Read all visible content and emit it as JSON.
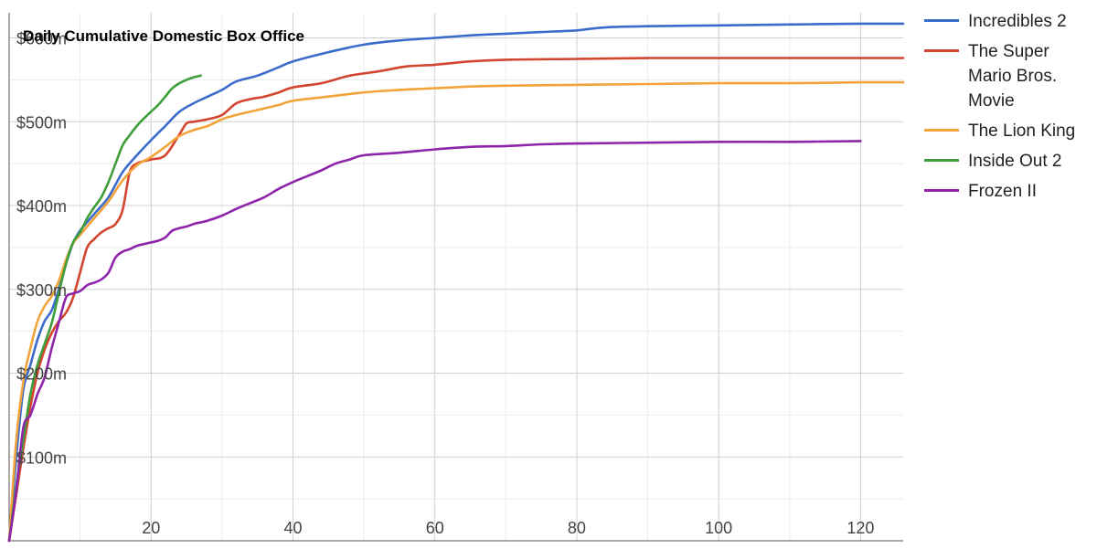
{
  "chart_data": {
    "type": "line",
    "title": "Daily Cumulative Domestic Box Office",
    "xlabel": "",
    "ylabel": "",
    "xlim": [
      0,
      126
    ],
    "ylim": [
      0,
      630
    ],
    "x_ticks": [
      20,
      40,
      60,
      80,
      100,
      120
    ],
    "y_ticks": [
      100,
      200,
      300,
      400,
      500,
      600
    ],
    "y_tick_labels": [
      "$100m",
      "$200m",
      "$300m",
      "$400m",
      "$500m",
      "$600m"
    ],
    "grid": true,
    "legend_position": "right",
    "series": [
      {
        "name": "Incredibles 2",
        "color": "#3c6ccb",
        "x": [
          0,
          1,
          2,
          3,
          4,
          5,
          6,
          7,
          8,
          9,
          10,
          12,
          14,
          16,
          18,
          20,
          22,
          24,
          26,
          28,
          30,
          32,
          35,
          38,
          40,
          45,
          50,
          55,
          60,
          65,
          70,
          75,
          80,
          82,
          85,
          90,
          100,
          110,
          120,
          126
        ],
        "y": [
          0,
          100,
          180,
          210,
          240,
          262,
          275,
          300,
          330,
          355,
          370,
          390,
          410,
          440,
          460,
          478,
          495,
          512,
          522,
          530,
          538,
          548,
          555,
          565,
          572,
          583,
          592,
          597,
          600,
          603,
          605,
          607,
          609,
          611,
          613,
          614,
          615,
          616,
          617,
          617
        ]
      },
      {
        "name": "The Super Mario Bros. Movie",
        "color": "#d3452f",
        "x": [
          0,
          1,
          2,
          3,
          4,
          5,
          6,
          7,
          8,
          9,
          10,
          11,
          12,
          13,
          14,
          15,
          16,
          17,
          18,
          19,
          20,
          22,
          24,
          25,
          26,
          28,
          30,
          32,
          34,
          36,
          38,
          40,
          44,
          48,
          52,
          56,
          60,
          65,
          70,
          80,
          90,
          100,
          110,
          120,
          126
        ],
        "y": [
          0,
          55,
          110,
          160,
          200,
          228,
          248,
          262,
          272,
          290,
          320,
          350,
          360,
          368,
          373,
          378,
          395,
          440,
          450,
          453,
          455,
          460,
          485,
          498,
          500,
          503,
          508,
          522,
          527,
          530,
          535,
          541,
          546,
          555,
          560,
          566,
          568,
          572,
          574,
          575,
          576,
          576,
          576,
          576,
          576
        ]
      },
      {
        "name": "The Lion King",
        "color": "#f2a33a",
        "x": [
          0,
          1,
          2,
          3,
          4,
          5,
          6,
          7,
          8,
          9,
          10,
          12,
          14,
          16,
          18,
          20,
          22,
          24,
          26,
          28,
          30,
          32,
          35,
          38,
          40,
          45,
          50,
          55,
          60,
          65,
          70,
          80,
          90,
          100,
          110,
          120,
          126
        ],
        "y": [
          0,
          120,
          190,
          230,
          262,
          280,
          292,
          310,
          335,
          355,
          365,
          385,
          405,
          430,
          448,
          458,
          470,
          483,
          490,
          495,
          503,
          508,
          514,
          520,
          525,
          530,
          535,
          538,
          540,
          542,
          543,
          544,
          545,
          546,
          546,
          547,
          547
        ]
      },
      {
        "name": "Inside Out 2",
        "color": "#3d9e3a",
        "x": [
          0,
          1,
          2,
          3,
          4,
          5,
          6,
          7,
          8,
          9,
          10,
          11,
          12,
          13,
          14,
          15,
          16,
          17,
          18,
          19,
          20,
          21,
          22,
          23,
          24,
          25,
          26,
          27
        ],
        "y": [
          0,
          65,
          120,
          175,
          210,
          235,
          260,
          295,
          330,
          356,
          368,
          385,
          398,
          410,
          428,
          450,
          472,
          484,
          495,
          504,
          512,
          520,
          530,
          540,
          546,
          550,
          553,
          555
        ]
      },
      {
        "name": "Frozen II",
        "color": "#8e24aa",
        "x": [
          0,
          1,
          2,
          3,
          4,
          5,
          6,
          7,
          8,
          9,
          10,
          11,
          12,
          13,
          14,
          15,
          16,
          17,
          18,
          19,
          20,
          21,
          22,
          23,
          24,
          25,
          26,
          27,
          28,
          30,
          32,
          34,
          36,
          38,
          40,
          42,
          44,
          46,
          48,
          50,
          55,
          60,
          65,
          70,
          75,
          80,
          90,
          100,
          110,
          120
        ],
        "y": [
          0,
          60,
          135,
          150,
          175,
          195,
          230,
          260,
          290,
          295,
          298,
          305,
          308,
          312,
          320,
          338,
          345,
          348,
          352,
          354,
          356,
          358,
          362,
          370,
          373,
          375,
          378,
          380,
          382,
          388,
          396,
          403,
          410,
          420,
          428,
          435,
          442,
          450,
          455,
          460,
          463,
          467,
          470,
          471,
          473,
          474,
          475,
          476,
          476,
          477
        ]
      }
    ]
  }
}
